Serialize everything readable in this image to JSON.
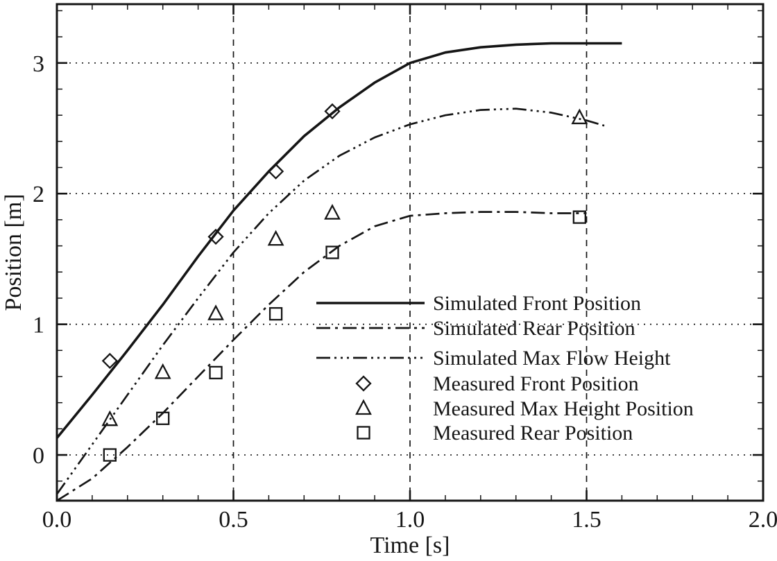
{
  "figure": {
    "background": "#ffffff",
    "ink": "#151515"
  },
  "chart_data": {
    "type": "line",
    "title": "",
    "xlabel": "Time [s]",
    "ylabel": "Position [m]",
    "xlim": [
      0.0,
      2.0
    ],
    "ylim": [
      -0.35,
      3.45
    ],
    "xticks": {
      "values": [
        0.0,
        0.5,
        1.0,
        1.5,
        2.0
      ],
      "labels": [
        "0.0",
        "0.5",
        "1.0",
        "1.5",
        "2.0"
      ]
    },
    "yticks": {
      "values": [
        0,
        1,
        2,
        3
      ],
      "labels": [
        "0",
        "1",
        "2",
        "3"
      ]
    },
    "x_minor_step": 0.1,
    "y_minor_step": 0.2,
    "grid": {
      "h_values": [
        0,
        1,
        2,
        3
      ],
      "h_style": "dotted",
      "v_values": [
        0.5,
        1.0,
        1.5
      ],
      "v_style": "dashed"
    },
    "legend_position": "inside center-right",
    "series": [
      {
        "name": "Simulated Front Position",
        "style": "solid",
        "x": [
          0.0,
          0.1,
          0.2,
          0.3,
          0.4,
          0.5,
          0.6,
          0.7,
          0.8,
          0.9,
          1.0,
          1.1,
          1.2,
          1.3,
          1.4,
          1.5,
          1.6
        ],
        "y": [
          0.13,
          0.46,
          0.8,
          1.15,
          1.52,
          1.87,
          2.17,
          2.44,
          2.66,
          2.85,
          3.0,
          3.08,
          3.12,
          3.14,
          3.15,
          3.15,
          3.15
        ]
      },
      {
        "name": "Simulated Rear Position",
        "style": "dash-dot",
        "x": [
          0.0,
          0.1,
          0.2,
          0.3,
          0.4,
          0.5,
          0.6,
          0.7,
          0.8,
          0.9,
          1.0,
          1.1,
          1.2,
          1.3,
          1.4,
          1.5
        ],
        "y": [
          -0.35,
          -0.18,
          0.06,
          0.32,
          0.6,
          0.88,
          1.15,
          1.4,
          1.6,
          1.75,
          1.83,
          1.85,
          1.86,
          1.86,
          1.85,
          1.85
        ]
      },
      {
        "name": "Simulated Max Flow Height",
        "style": "dash-dot-dot-dot",
        "x": [
          0.0,
          0.1,
          0.2,
          0.3,
          0.4,
          0.5,
          0.6,
          0.7,
          0.8,
          0.9,
          1.0,
          1.1,
          1.2,
          1.3,
          1.4,
          1.5,
          1.55
        ],
        "y": [
          -0.3,
          0.08,
          0.46,
          0.84,
          1.2,
          1.55,
          1.85,
          2.1,
          2.29,
          2.43,
          2.53,
          2.6,
          2.64,
          2.65,
          2.62,
          2.56,
          2.52
        ]
      }
    ],
    "scatter": [
      {
        "name": "Measured Front Position",
        "marker": "diamond",
        "x": [
          0.15,
          0.45,
          0.62,
          0.78
        ],
        "y": [
          0.72,
          1.67,
          2.17,
          2.63
        ]
      },
      {
        "name": "Measured Max Height Position",
        "marker": "triangle",
        "x": [
          0.15,
          0.3,
          0.45,
          0.62,
          0.78,
          1.48
        ],
        "y": [
          0.27,
          0.63,
          1.08,
          1.65,
          1.85,
          2.58
        ]
      },
      {
        "name": "Measured Rear Position",
        "marker": "square",
        "x": [
          0.15,
          0.3,
          0.45,
          0.62,
          0.78,
          1.48
        ],
        "y": [
          0.0,
          0.28,
          0.63,
          1.08,
          1.55,
          1.82
        ]
      }
    ],
    "legend": [
      {
        "label": "Simulated Front Position",
        "sample": "line",
        "style": "solid"
      },
      {
        "label": "Simulated Rear Position",
        "sample": "line",
        "style": "dash-dot"
      },
      {
        "label": "Simulated Max Flow Height",
        "sample": "line",
        "style": "dash-dot-dot-dot"
      },
      {
        "label": "Measured Front Position",
        "sample": "marker",
        "marker": "diamond"
      },
      {
        "label": "Measured Max Height Position",
        "sample": "marker",
        "marker": "triangle"
      },
      {
        "label": "Measured Rear Position",
        "sample": "marker",
        "marker": "square"
      }
    ]
  }
}
